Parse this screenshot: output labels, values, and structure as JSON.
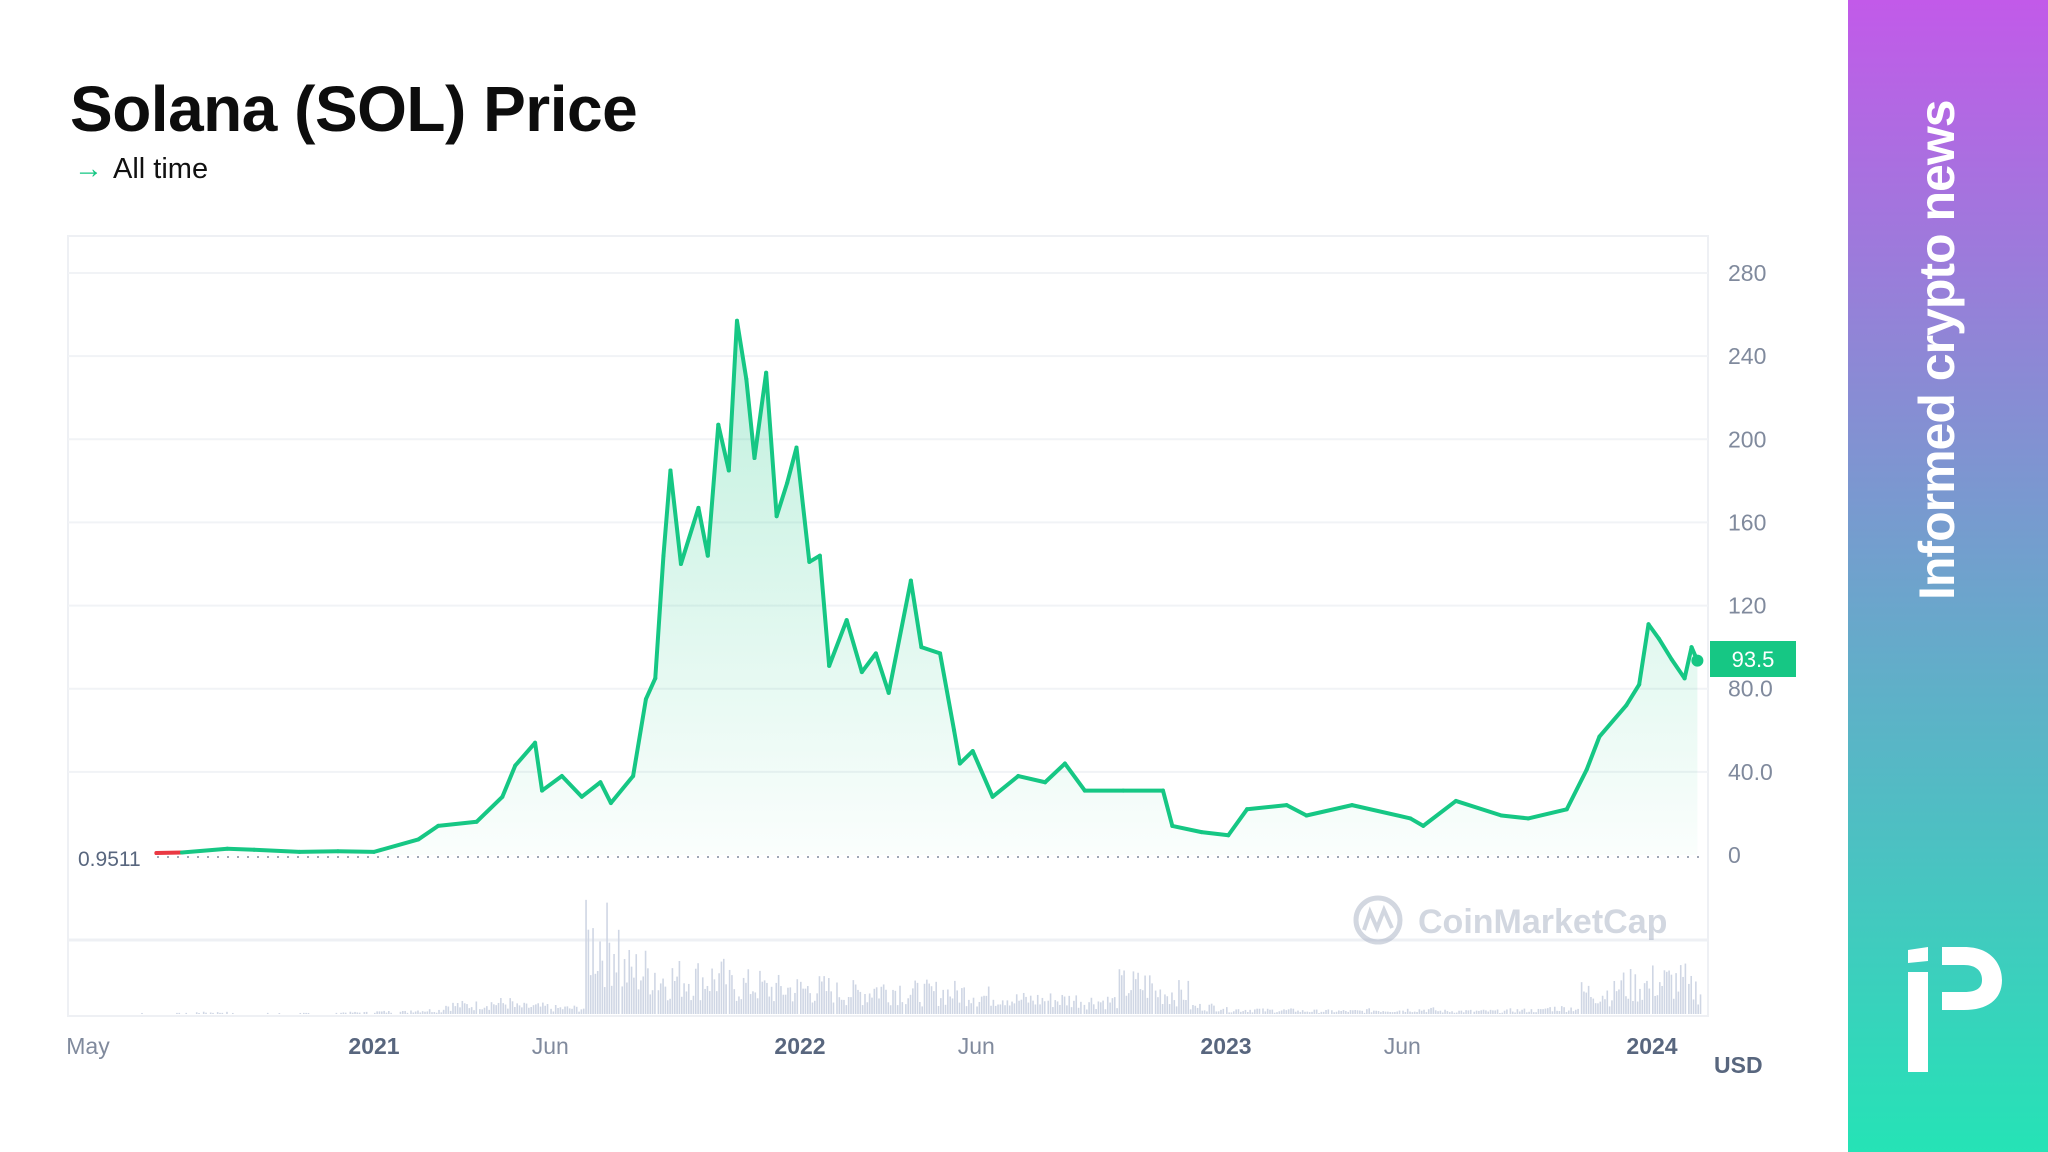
{
  "header": {
    "title": "Solana (SOL) Price",
    "range_arrow": "→",
    "range_label": "All time"
  },
  "side_panel": {
    "tagline": "Informed crypto news",
    "logo_icon": "ip-logo-icon",
    "gradient": [
      "#c25ae9",
      "#25e3b6"
    ]
  },
  "watermark": "CoinMarketCap",
  "chart_data": {
    "type": "area",
    "title": "",
    "xlabel": "",
    "ylabel": "",
    "currency_label": "USD",
    "ylim": [
      0,
      280
    ],
    "y_ticks": [
      "0",
      "40.0",
      "80.0",
      "120",
      "160",
      "200",
      "240",
      "280"
    ],
    "y_tick_values": [
      0,
      40,
      80,
      120,
      160,
      200,
      240,
      280
    ],
    "x_ticks": [
      {
        "label": "May",
        "date": "2020-05-01",
        "bold": false
      },
      {
        "label": "2021",
        "date": "2021-01-01",
        "bold": true
      },
      {
        "label": "Jun",
        "date": "2021-06-01",
        "bold": false
      },
      {
        "label": "2022",
        "date": "2022-01-01",
        "bold": true
      },
      {
        "label": "Jun",
        "date": "2022-06-01",
        "bold": false
      },
      {
        "label": "2023",
        "date": "2023-01-01",
        "bold": true
      },
      {
        "label": "Jun",
        "date": "2023-06-01",
        "bold": false
      },
      {
        "label": "2024",
        "date": "2024-01-01",
        "bold": true
      }
    ],
    "start_price_label": "0.9511",
    "start_price": 0.9511,
    "current_price_label": "93.5",
    "current_price": 93.5,
    "grid": true,
    "colors": {
      "line_up": "#16c784",
      "line_down": "#ea3943",
      "badge": "#16c784",
      "axis_text": "#808a9d",
      "volume": "#cfd6e4"
    },
    "series": [
      {
        "points": [
          [
            "2020-06-28",
            0.95
          ],
          [
            "2020-07-20",
            1.2
          ],
          [
            "2020-08-28",
            3
          ],
          [
            "2020-09-20",
            2.5
          ],
          [
            "2020-10-29",
            1.5
          ],
          [
            "2020-12-01",
            1.8
          ],
          [
            "2021-01-01",
            1.5
          ],
          [
            "2021-02-08",
            7.5
          ],
          [
            "2021-02-25",
            14
          ],
          [
            "2021-03-30",
            16
          ],
          [
            "2021-04-21",
            28
          ],
          [
            "2021-05-02",
            43
          ],
          [
            "2021-05-19",
            54
          ],
          [
            "2021-05-25",
            31
          ],
          [
            "2021-06-11",
            38
          ],
          [
            "2021-06-28",
            28
          ],
          [
            "2021-07-14",
            35
          ],
          [
            "2021-07-23",
            25
          ],
          [
            "2021-08-11",
            38
          ],
          [
            "2021-08-22",
            75
          ],
          [
            "2021-08-30",
            85
          ],
          [
            "2021-09-06",
            144
          ],
          [
            "2021-09-12",
            185
          ],
          [
            "2021-09-21",
            140
          ],
          [
            "2021-10-06",
            167
          ],
          [
            "2021-10-14",
            144
          ],
          [
            "2021-10-23",
            207
          ],
          [
            "2021-11-01",
            185
          ],
          [
            "2021-11-08",
            257
          ],
          [
            "2021-11-16",
            229
          ],
          [
            "2021-11-23",
            191
          ],
          [
            "2021-12-03",
            232
          ],
          [
            "2021-12-12",
            163
          ],
          [
            "2021-12-21",
            179
          ],
          [
            "2021-12-29",
            196
          ],
          [
            "2022-01-09",
            141
          ],
          [
            "2022-01-18",
            144
          ],
          [
            "2022-01-26",
            91
          ],
          [
            "2022-02-10",
            113
          ],
          [
            "2022-02-23",
            88
          ],
          [
            "2022-03-07",
            97
          ],
          [
            "2022-03-18",
            78
          ],
          [
            "2022-04-06",
            132
          ],
          [
            "2022-04-15",
            100
          ],
          [
            "2022-05-01",
            97
          ],
          [
            "2022-05-13",
            60
          ],
          [
            "2022-05-18",
            44
          ],
          [
            "2022-05-29",
            50
          ],
          [
            "2022-06-15",
            28
          ],
          [
            "2022-07-07",
            38
          ],
          [
            "2022-07-30",
            35
          ],
          [
            "2022-08-16",
            44
          ],
          [
            "2022-09-02",
            31
          ],
          [
            "2022-10-05",
            31
          ],
          [
            "2022-11-08",
            31
          ],
          [
            "2022-11-16",
            14
          ],
          [
            "2022-12-11",
            11
          ],
          [
            "2023-01-03",
            9.5
          ],
          [
            "2023-01-19",
            22
          ],
          [
            "2023-02-22",
            24
          ],
          [
            "2023-03-11",
            19
          ],
          [
            "2023-04-19",
            24
          ],
          [
            "2023-06-08",
            17.6
          ],
          [
            "2023-06-19",
            14
          ],
          [
            "2023-07-17",
            26
          ],
          [
            "2023-08-25",
            19
          ],
          [
            "2023-09-17",
            17.6
          ],
          [
            "2023-10-20",
            22
          ],
          [
            "2023-11-06",
            41
          ],
          [
            "2023-11-17",
            57
          ],
          [
            "2023-12-10",
            72
          ],
          [
            "2023-12-21",
            82
          ],
          [
            "2023-12-29",
            111
          ],
          [
            "2024-01-07",
            104
          ],
          [
            "2024-01-18",
            94
          ],
          [
            "2024-01-29",
            85
          ],
          [
            "2024-02-04",
            100
          ],
          [
            "2024-02-09",
            93.5
          ]
        ]
      }
    ],
    "volume_relative_monthly": {
      "start": "2020-06",
      "values": [
        0.01,
        0.01,
        0.02,
        0.01,
        0.01,
        0.01,
        0.02,
        0.03,
        0.05,
        0.12,
        0.15,
        0.1,
        0.08,
        1.0,
        0.6,
        0.5,
        0.5,
        0.4,
        0.35,
        0.35,
        0.3,
        0.35,
        0.3,
        0.3,
        0.25,
        0.2,
        0.2,
        0.18,
        0.4,
        0.3,
        0.1,
        0.06,
        0.05,
        0.04,
        0.04,
        0.05,
        0.06,
        0.04,
        0.04,
        0.05,
        0.08,
        0.3,
        0.4,
        0.45,
        0.35
      ]
    }
  }
}
